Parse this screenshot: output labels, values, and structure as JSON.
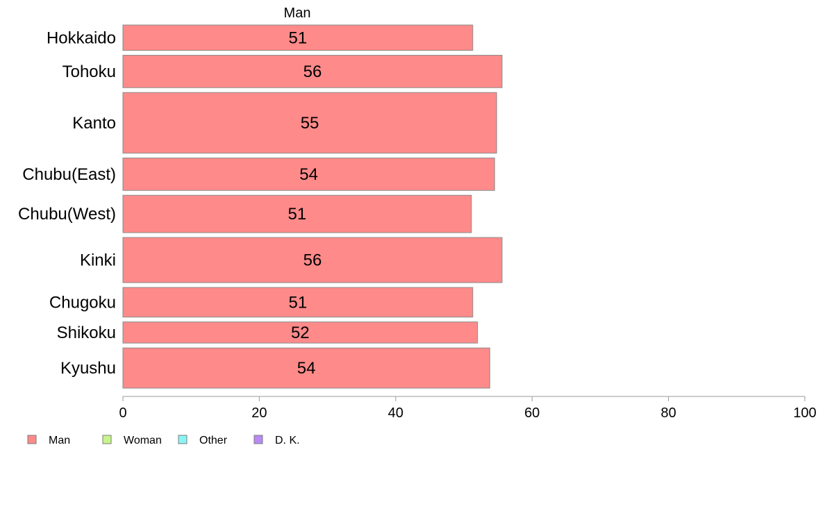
{
  "chart_data": {
    "type": "bar",
    "orientation": "horizontal",
    "stacked": true,
    "series_header": "Man",
    "categories": [
      "Hokkaido",
      "Tohoku",
      "Kanto",
      "Chubu(East)",
      "Chubu(West)",
      "Kinki",
      "Chugoku",
      "Shikoku",
      "Kyushu"
    ],
    "bar_weights": [
      36,
      46,
      86,
      46,
      53,
      64,
      42,
      30,
      57
    ],
    "series": [
      {
        "name": "Man",
        "color": "#ff8a8a",
        "values": [
          51.3,
          55.6,
          54.8,
          54.5,
          51.1,
          55.6,
          51.3,
          52.0,
          53.8
        ],
        "labels": [
          "51",
          "56",
          "55",
          "54",
          "51",
          "56",
          "51",
          "52",
          "54"
        ]
      }
    ],
    "xlim": [
      0,
      100
    ],
    "xticks": [
      0,
      20,
      40,
      60,
      80,
      100
    ],
    "xlabel": "",
    "ylabel": "",
    "grid": false,
    "legend": {
      "placement": "bottom-left",
      "items": [
        {
          "label": "Man",
          "color": "#ff8a8a"
        },
        {
          "label": "Woman",
          "color": "#c8f58a"
        },
        {
          "label": "Other",
          "color": "#8af5f5"
        },
        {
          "label": "D. K.",
          "color": "#b98af5"
        }
      ]
    }
  }
}
